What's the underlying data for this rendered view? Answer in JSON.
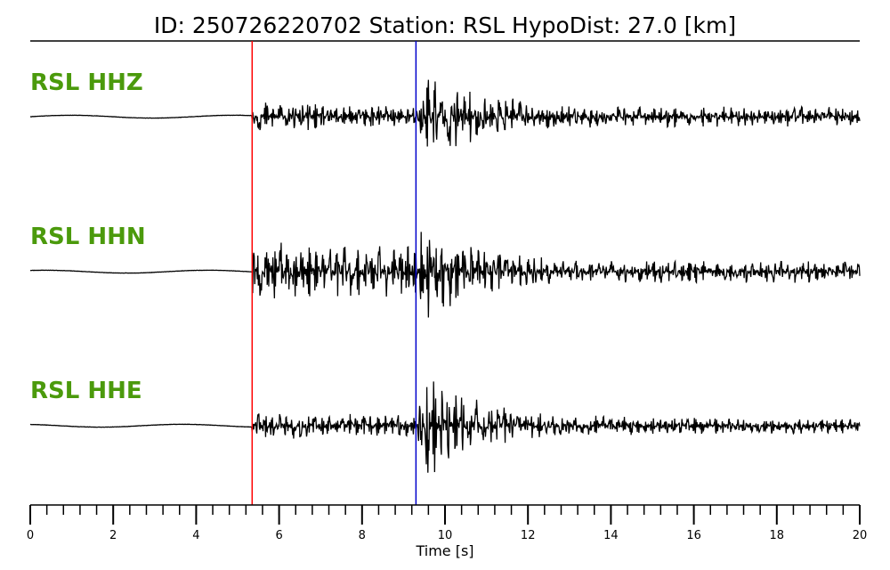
{
  "chart_data": {
    "type": "line",
    "title": "ID: 250726220702   Station: RSL   HypoDist:     27.0 [km]",
    "xlabel": "Time [s]",
    "ylabel": "",
    "xlim": [
      0,
      20
    ],
    "x_ticks": [
      0,
      2,
      4,
      6,
      8,
      10,
      12,
      14,
      16,
      18,
      20
    ],
    "minor_tick_step": 0.4,
    "grid": false,
    "label_color": "#4b9a0c",
    "trace_color": "#000000",
    "markers": [
      {
        "name": "P",
        "time": 5.35,
        "color": "#ff0000"
      },
      {
        "name": "S",
        "time": 9.3,
        "color": "#0000cc"
      }
    ],
    "series": [
      {
        "name": "RSL HHZ",
        "p_amp": 0.22,
        "s_amp": 0.85,
        "coda": 0.14,
        "seed": 11
      },
      {
        "name": "RSL HHN",
        "p_amp": 0.45,
        "s_amp": 0.8,
        "coda": 0.16,
        "seed": 23
      },
      {
        "name": "RSL HHE",
        "p_amp": 0.2,
        "s_amp": 0.9,
        "coda": 0.12,
        "seed": 37
      }
    ]
  }
}
